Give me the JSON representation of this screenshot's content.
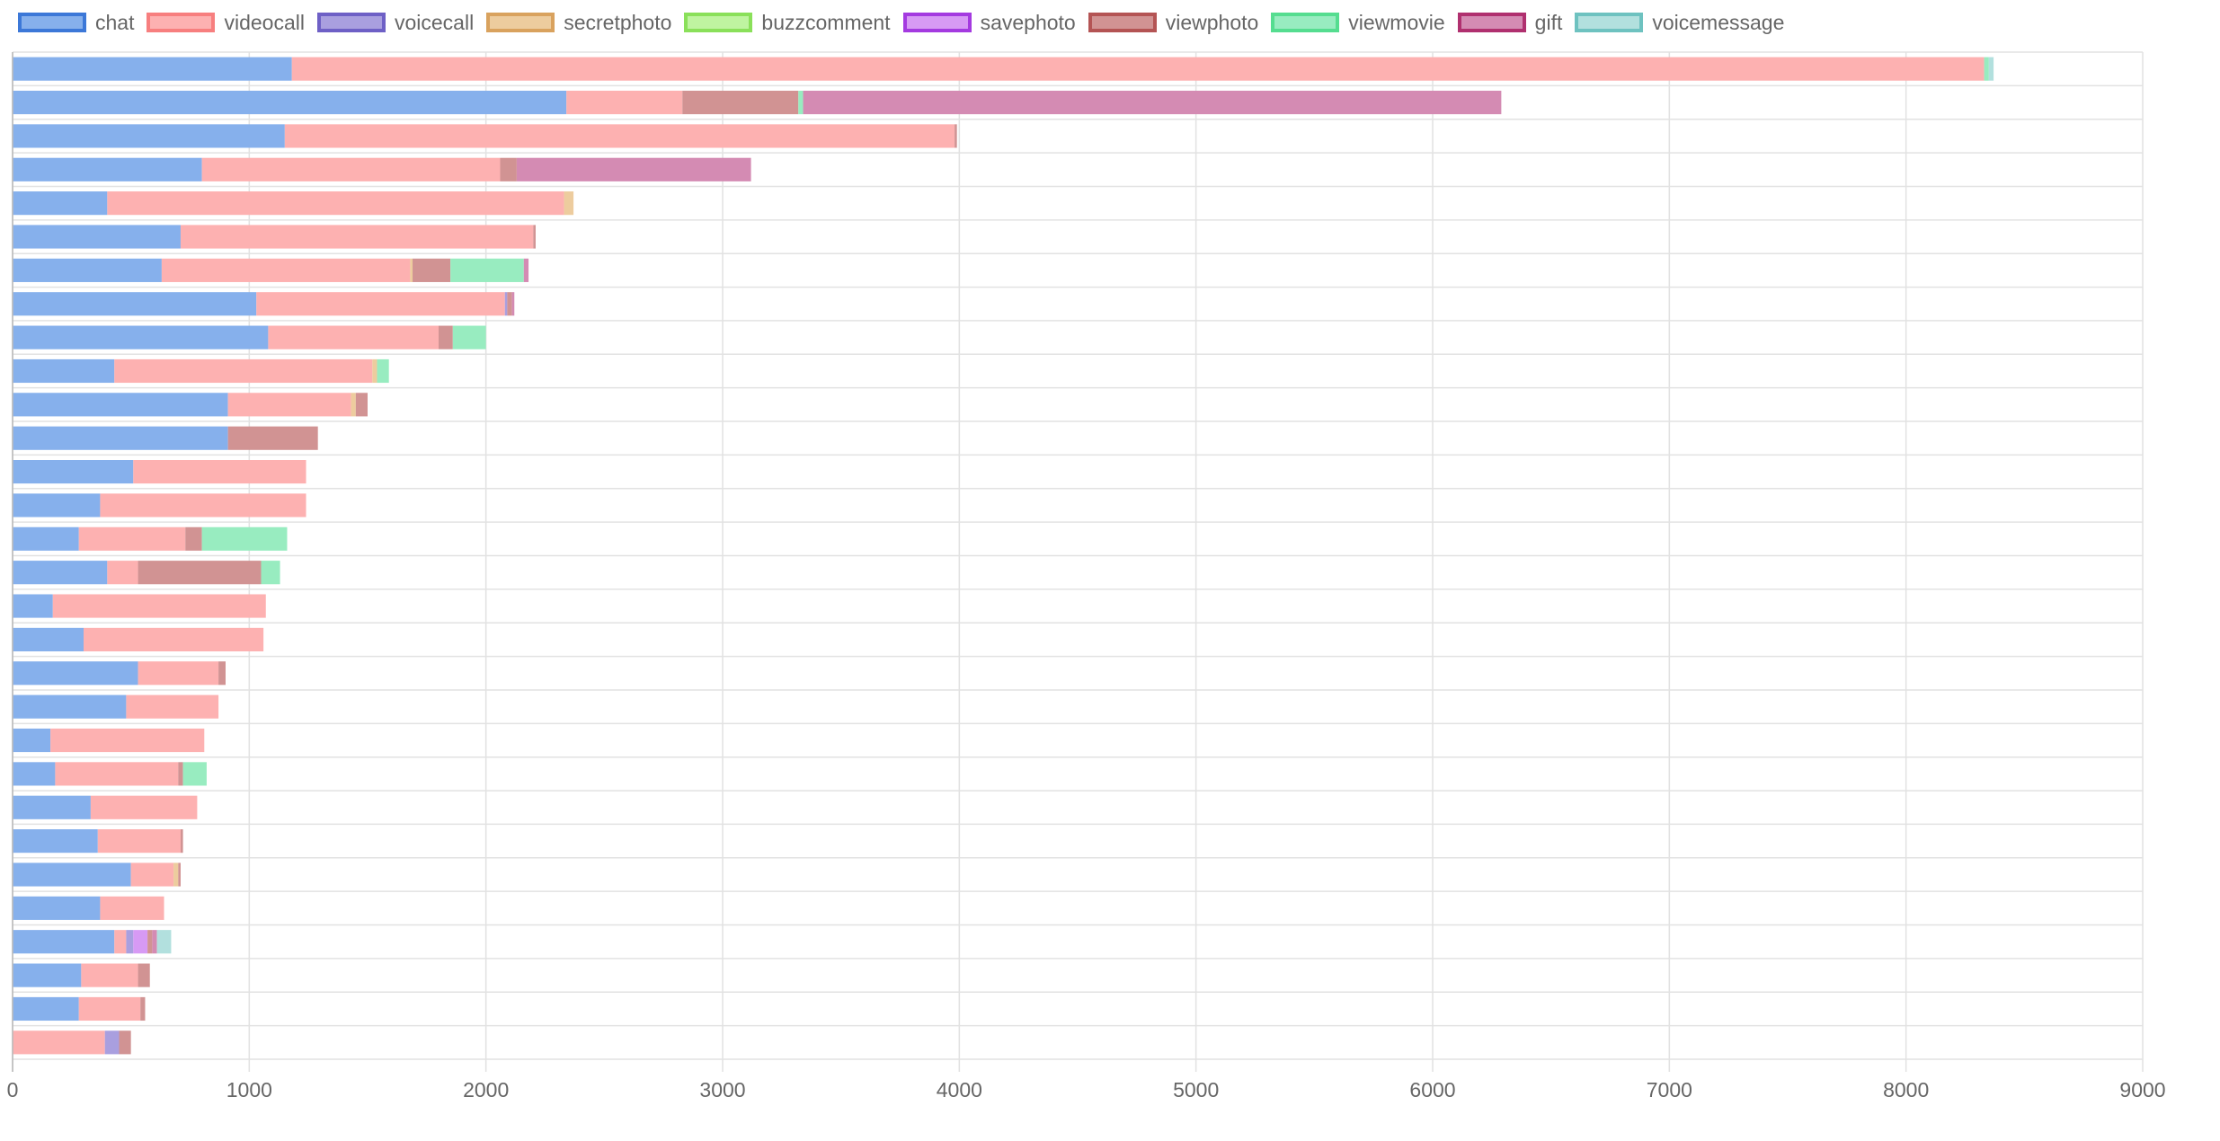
{
  "chart_data": {
    "type": "bar",
    "orientation": "horizontal",
    "stacked": true,
    "title": "",
    "xlabel": "",
    "ylabel": "",
    "xlim": [
      0,
      9000
    ],
    "x_ticks": [
      "0",
      "1000",
      "2000",
      "3000",
      "4000",
      "5000",
      "6000",
      "7000",
      "8000",
      "9000"
    ],
    "grid": true,
    "legend_position": "top",
    "categories": [
      "",
      "",
      "",
      "",
      "",
      "",
      "",
      "",
      "",
      "",
      "",
      "",
      "",
      "",
      "",
      "",
      "",
      "",
      "",
      "",
      "",
      "",
      "",
      "",
      "",
      "",
      "",
      "",
      "",
      ""
    ],
    "series": [
      {
        "name": "chat",
        "color": "#4f8fe6",
        "fill": "#86b0ec",
        "border": "#3c78d8",
        "values": [
          1180,
          2340,
          1150,
          800,
          400,
          710,
          630,
          1030,
          1080,
          430,
          910,
          910,
          510,
          370,
          280,
          400,
          170,
          300,
          530,
          480,
          160,
          180,
          330,
          360,
          500,
          370,
          430,
          290,
          280,
          0
        ]
      },
      {
        "name": "videocall",
        "color": "#ff9a9a",
        "fill": "#fdb1b1",
        "border": "#f77f7f",
        "values": [
          7150,
          490,
          2830,
          1260,
          1930,
          1490,
          1050,
          1050,
          720,
          1090,
          520,
          0,
          730,
          870,
          450,
          130,
          900,
          760,
          340,
          390,
          650,
          520,
          450,
          350,
          180,
          270,
          50,
          240,
          260,
          390
        ]
      },
      {
        "name": "voicecall",
        "color": "#8b7fd2",
        "fill": "#a99fdf",
        "border": "#6e60c6",
        "values": [
          0,
          0,
          0,
          0,
          0,
          0,
          0,
          10,
          0,
          0,
          0,
          0,
          0,
          0,
          0,
          0,
          0,
          0,
          0,
          0,
          0,
          0,
          0,
          0,
          0,
          0,
          30,
          0,
          0,
          60
        ]
      },
      {
        "name": "secretphoto",
        "color": "#e8c493",
        "fill": "#edcc9e",
        "border": "#d9a25e",
        "values": [
          0,
          0,
          0,
          0,
          40,
          0,
          10,
          0,
          0,
          20,
          20,
          0,
          0,
          0,
          0,
          0,
          0,
          0,
          0,
          0,
          0,
          0,
          0,
          0,
          20,
          0,
          0,
          0,
          0,
          0
        ]
      },
      {
        "name": "buzzcomment",
        "color": "#b3f08a",
        "fill": "#bff4a0",
        "border": "#8ae05a",
        "values": [
          0,
          0,
          0,
          0,
          0,
          0,
          0,
          0,
          0,
          0,
          0,
          0,
          0,
          0,
          0,
          0,
          0,
          0,
          0,
          0,
          0,
          0,
          0,
          0,
          0,
          0,
          0,
          0,
          0,
          0
        ]
      },
      {
        "name": "savephoto",
        "color": "#cc88f0",
        "fill": "#d79af4",
        "border": "#a43ae0",
        "values": [
          0,
          0,
          0,
          0,
          0,
          0,
          0,
          0,
          0,
          0,
          0,
          0,
          0,
          0,
          0,
          0,
          0,
          0,
          0,
          0,
          0,
          0,
          0,
          0,
          0,
          0,
          60,
          0,
          0,
          0
        ]
      },
      {
        "name": "viewphoto",
        "color": "#c98a8a",
        "fill": "#d19393",
        "border": "#b45454",
        "values": [
          0,
          490,
          10,
          70,
          0,
          10,
          160,
          20,
          60,
          0,
          50,
          380,
          0,
          0,
          70,
          520,
          0,
          0,
          30,
          0,
          0,
          20,
          0,
          10,
          10,
          0,
          20,
          50,
          20,
          50
        ]
      },
      {
        "name": "viewmovie",
        "color": "#8ee8b4",
        "fill": "#98ecc0",
        "border": "#55dd90",
        "values": [
          20,
          20,
          0,
          0,
          0,
          0,
          310,
          0,
          140,
          50,
          0,
          0,
          0,
          0,
          360,
          80,
          0,
          0,
          0,
          0,
          0,
          100,
          0,
          0,
          0,
          0,
          0,
          0,
          0,
          0
        ]
      },
      {
        "name": "gift",
        "color": "#cf87ae",
        "fill": "#d48bb3",
        "border": "#b0306f",
        "values": [
          0,
          2950,
          0,
          990,
          0,
          0,
          20,
          10,
          0,
          0,
          0,
          0,
          0,
          0,
          0,
          0,
          0,
          0,
          0,
          0,
          0,
          0,
          0,
          0,
          0,
          0,
          20,
          0,
          0,
          0
        ]
      },
      {
        "name": "voicemessage",
        "color": "#a9dcdc",
        "fill": "#b2e0de",
        "border": "#6ec2c0",
        "values": [
          20,
          0,
          0,
          0,
          0,
          0,
          0,
          0,
          0,
          0,
          0,
          0,
          0,
          0,
          0,
          0,
          0,
          0,
          0,
          0,
          0,
          0,
          0,
          0,
          0,
          0,
          60,
          0,
          0,
          0
        ]
      }
    ]
  }
}
